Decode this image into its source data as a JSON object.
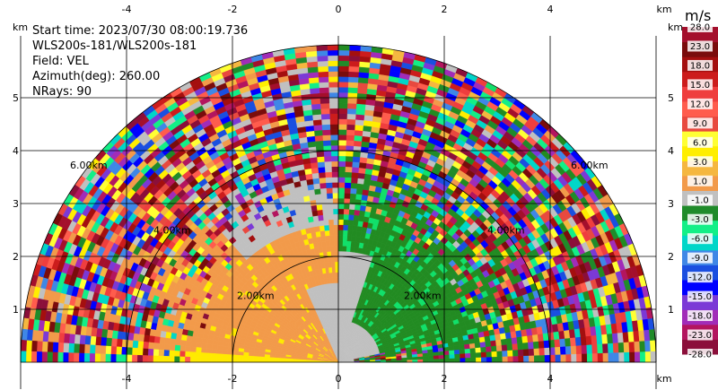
{
  "info": {
    "start_time": "Start time: 2023/07/30 08:00:19.736",
    "site": "WLS200s-181/WLS200s-181",
    "field": "Field: VEL",
    "azimuth": "Azimuth(deg): 260.00",
    "nrays": "NRays: 90"
  },
  "colors": {
    "ground": "#c0c0c0",
    "orange": "#f29a4a",
    "yellow": "#ffea00",
    "green": "#228b22",
    "bright_green": "#11e06a"
  },
  "chart_data": {
    "type": "heatmap",
    "title": "",
    "xlabel": "",
    "ylabel": "",
    "x_unit": "km",
    "y_unit": "km",
    "xlim": [
      -6.0,
      6.0
    ],
    "ylim": [
      0.0,
      6.0
    ],
    "x_ticks": [
      -4,
      -2,
      0,
      2,
      4
    ],
    "y_ticks": [
      1,
      2,
      3,
      4,
      5
    ],
    "grid": true,
    "max_range_km": 6.0,
    "range_rings": [
      {
        "range_km": 2,
        "label": "2.00km"
      },
      {
        "range_km": 4,
        "label": "4.00km"
      },
      {
        "range_km": 6,
        "label": "6.00km"
      }
    ],
    "colorbar": {
      "unit": "m/s",
      "tick_labels": [
        "-28.0",
        "-23.0",
        "-18.0",
        "-15.0",
        "-12.0",
        "-9.0",
        "-6.0",
        "-3.0",
        "-1.0",
        "1.0",
        "3.0",
        "6.0",
        "9.0",
        "12.0",
        "15.0",
        "18.0",
        "23.0",
        "28.0"
      ],
      "colors": [
        "#8b0f3a",
        "#b3155f",
        "#a12cb8",
        "#7b39d6",
        "#0000ff",
        "#1a4fe0",
        "#3f87e6",
        "#00d6c8",
        "#13ef87",
        "#208b2a",
        "#c0c0c0",
        "#f29a4a",
        "#f5b740",
        "#ffee00",
        "#ffff33",
        "#e8493f",
        "#ff5c4d",
        "#ef3e3e",
        "#cc1c1c",
        "#a40f0f",
        "#7a0c0c",
        "#a40f2c"
      ]
    },
    "scan_note": "PPI scan of radial velocity; inner region mostly near-zero (grey), approaching side negative (green), receding side positive (orange/yellow), outer range gates noisy."
  }
}
